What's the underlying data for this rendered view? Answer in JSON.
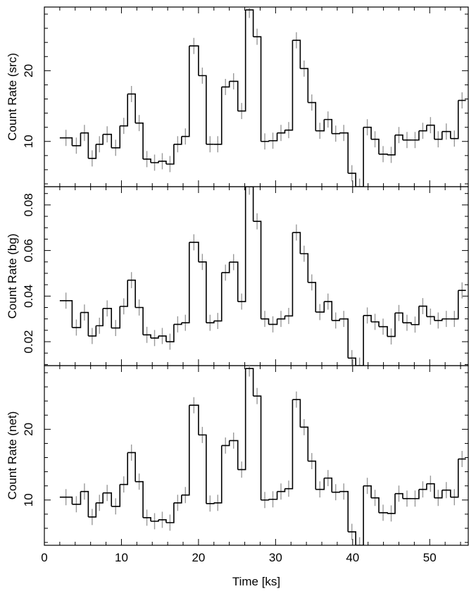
{
  "chart_data": [
    {
      "type": "line",
      "style": "step",
      "ylabel": "Count Rate (src)",
      "xlim": [
        0,
        55
      ],
      "ylim": [
        3.6,
        29.0
      ],
      "yticks_major": [
        10,
        20
      ],
      "yticks_minor_step": 2,
      "xticks_major": [
        0,
        10,
        20,
        30,
        40,
        50
      ],
      "xticks_minor_step": 2,
      "show_x_tick_labels": false,
      "x": [
        2.0,
        3.6,
        4.7,
        5.7,
        6.7,
        7.6,
        8.7,
        9.8,
        10.8,
        11.8,
        12.8,
        13.8,
        14.8,
        15.8,
        16.8,
        17.8,
        18.8,
        20.0,
        21.0,
        22.0,
        23.0,
        24.0,
        25.1,
        26.1,
        27.1,
        28.1,
        29.1,
        30.2,
        31.2,
        32.2,
        33.2,
        34.2,
        35.2,
        36.3,
        37.3,
        38.3,
        39.4,
        40.4,
        41.4,
        42.4,
        43.4,
        44.5,
        45.5,
        46.5,
        47.6,
        48.6,
        49.6,
        50.6,
        51.6,
        52.7,
        53.7
      ],
      "values": [
        10.5,
        9.4,
        11.2,
        7.6,
        9.6,
        11.0,
        9.1,
        12.2,
        16.7,
        12.6,
        7.5,
        7.0,
        7.2,
        6.8,
        9.6,
        10.7,
        23.5,
        19.3,
        9.6,
        9.6,
        17.7,
        18.5,
        14.3,
        28.6,
        24.8,
        10.0,
        10.1,
        11.2,
        11.6,
        24.3,
        20.3,
        15.5,
        11.5,
        13.1,
        11.1,
        11.2,
        5.5,
        3.6,
        12.0,
        10.3,
        8.2,
        8.1,
        10.9,
        10.2,
        10.2,
        11.5,
        12.3,
        10.3,
        11.4,
        10.4,
        15.8
      ]
    },
    {
      "type": "line",
      "style": "step",
      "ylabel": "Count Rate (bg)",
      "xlim": [
        0,
        55
      ],
      "ylim": [
        0.0095,
        0.088
      ],
      "yticks_major": [
        0.02,
        0.04,
        0.06,
        0.08
      ],
      "ytick_labels": [
        "0.02",
        "0.04",
        "0.06",
        "0.08"
      ],
      "yticks_minor_step": 0.005,
      "xticks_major": [
        0,
        10,
        20,
        30,
        40,
        50
      ],
      "xticks_minor_step": 2,
      "show_x_tick_labels": false,
      "x": [
        2.0,
        3.6,
        4.7,
        5.7,
        6.7,
        7.6,
        8.7,
        9.8,
        10.8,
        11.8,
        12.8,
        13.8,
        14.8,
        15.8,
        16.8,
        17.8,
        18.8,
        20.0,
        21.0,
        22.0,
        23.0,
        24.0,
        25.1,
        26.1,
        27.1,
        28.1,
        29.1,
        30.2,
        31.2,
        32.2,
        33.2,
        34.2,
        35.2,
        36.3,
        37.3,
        38.3,
        39.4,
        40.4,
        41.4,
        42.4,
        43.4,
        44.5,
        45.5,
        46.5,
        47.6,
        48.6,
        49.6,
        50.6,
        51.6,
        52.7,
        53.7
      ],
      "values": [
        0.038,
        0.0262,
        0.0328,
        0.0225,
        0.027,
        0.0346,
        0.026,
        0.0355,
        0.047,
        0.035,
        0.023,
        0.0216,
        0.0225,
        0.02,
        0.0276,
        0.0283,
        0.0636,
        0.055,
        0.0283,
        0.0291,
        0.0503,
        0.0549,
        0.0376,
        0.088,
        0.0728,
        0.03,
        0.0276,
        0.03,
        0.0313,
        0.0679,
        0.0586,
        0.046,
        0.033,
        0.0376,
        0.0293,
        0.03,
        0.0128,
        0.0095,
        0.0315,
        0.0287,
        0.0266,
        0.0223,
        0.0326,
        0.0283,
        0.0275,
        0.0356,
        0.031,
        0.0293,
        0.03,
        0.03,
        0.0425
      ]
    },
    {
      "type": "line",
      "style": "step",
      "ylabel": "Count Rate (net)",
      "xlabel": "Time [ks]",
      "xlim": [
        0,
        55
      ],
      "ylim": [
        3.6,
        29.0
      ],
      "yticks_major": [
        10,
        20
      ],
      "yticks_minor_step": 2,
      "xticks_major": [
        0,
        10,
        20,
        30,
        40,
        50
      ],
      "xticks_minor_step": 2,
      "show_x_tick_labels": true,
      "x": [
        2.0,
        3.6,
        4.7,
        5.7,
        6.7,
        7.6,
        8.7,
        9.8,
        10.8,
        11.8,
        12.8,
        13.8,
        14.8,
        15.8,
        16.8,
        17.8,
        18.8,
        20.0,
        21.0,
        22.0,
        23.0,
        24.0,
        25.1,
        26.1,
        27.1,
        28.1,
        29.1,
        30.2,
        31.2,
        32.2,
        33.2,
        34.2,
        35.2,
        36.3,
        37.3,
        38.3,
        39.4,
        40.4,
        41.4,
        42.4,
        43.4,
        44.5,
        45.5,
        46.5,
        47.6,
        48.6,
        49.6,
        50.6,
        51.6,
        52.7,
        53.7
      ],
      "values": [
        10.4,
        9.4,
        11.2,
        7.6,
        9.6,
        11.0,
        9.1,
        12.2,
        16.7,
        12.6,
        7.5,
        7.0,
        7.2,
        6.8,
        9.6,
        10.7,
        23.4,
        19.2,
        9.5,
        9.6,
        17.7,
        18.4,
        14.3,
        28.6,
        24.7,
        10.0,
        10.1,
        11.2,
        11.6,
        24.2,
        20.3,
        15.5,
        11.5,
        13.1,
        11.1,
        11.2,
        5.5,
        3.6,
        12.0,
        10.3,
        8.2,
        8.1,
        10.9,
        10.2,
        10.2,
        11.5,
        12.3,
        10.3,
        11.4,
        10.4,
        15.8
      ]
    }
  ],
  "colors": {
    "line": "#000000",
    "error_bar": "#9a9a9a",
    "frame": "#000000",
    "background": "#ffffff"
  }
}
